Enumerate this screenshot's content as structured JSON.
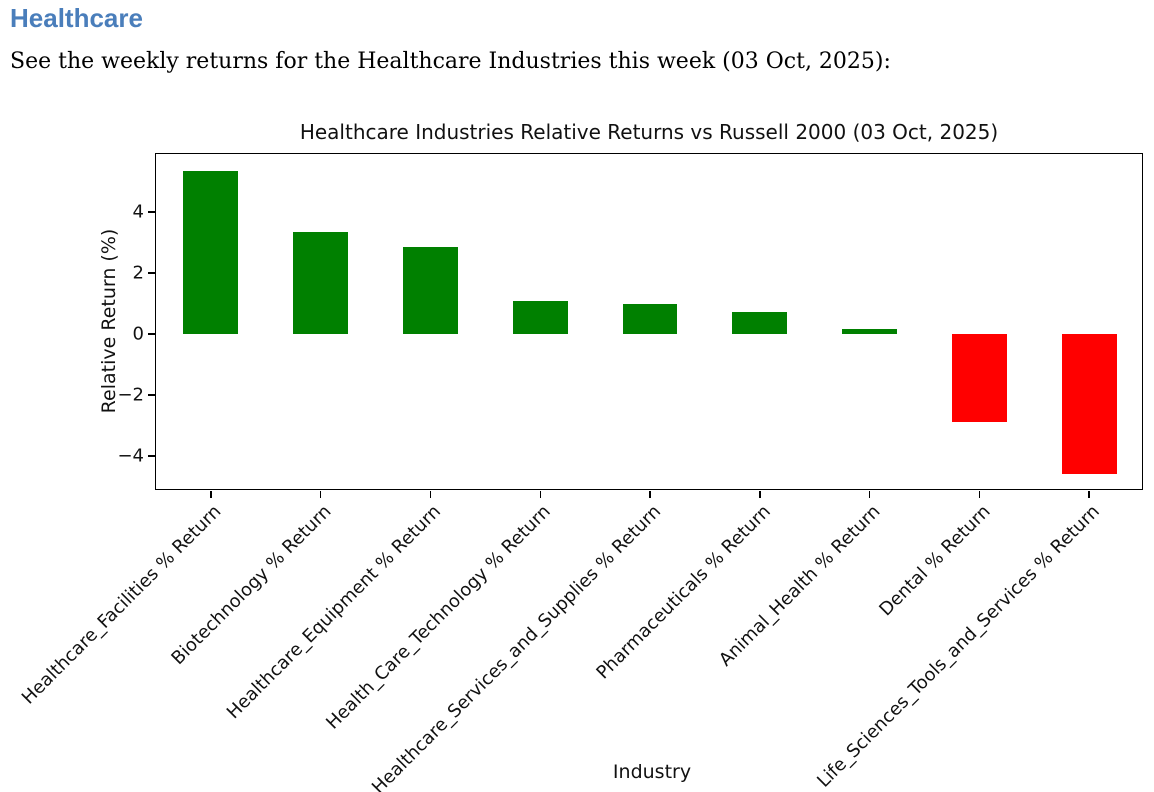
{
  "page": {
    "heading": "Healthcare",
    "intro": "See the weekly returns for the Healthcare Industries this week (03 Oct, 2025):"
  },
  "colors": {
    "heading": "#4a7ebb",
    "positive_bar": "#008000",
    "negative_bar": "#ff0000",
    "axis": "#000000"
  },
  "chart_data": {
    "type": "bar",
    "title": "Healthcare Industries Relative Returns vs Russell 2000 (03 Oct, 2025)",
    "xlabel": "Industry",
    "ylabel": "Relative Return (%)",
    "categories": [
      "Healthcare_Facilities % Return",
      "Biotechnology % Return",
      "Healthcare_Equipment % Return",
      "Health_Care_Technology % Return",
      "Healthcare_Services_and_Supplies % Return",
      "Pharmaceuticals % Return",
      "Animal_Health % Return",
      "Dental % Return",
      "Life_Sciences_Tools_and_Services % Return"
    ],
    "values": [
      5.35,
      3.35,
      2.85,
      1.08,
      0.97,
      0.72,
      0.16,
      -2.9,
      -4.58
    ],
    "yticks": [
      4,
      2,
      0,
      -2,
      -4
    ],
    "ylim": [
      -5.15,
      5.9
    ],
    "bar_width_fraction": 0.5,
    "x_tick_rotation_deg": 45,
    "grid": false,
    "legend": null
  }
}
